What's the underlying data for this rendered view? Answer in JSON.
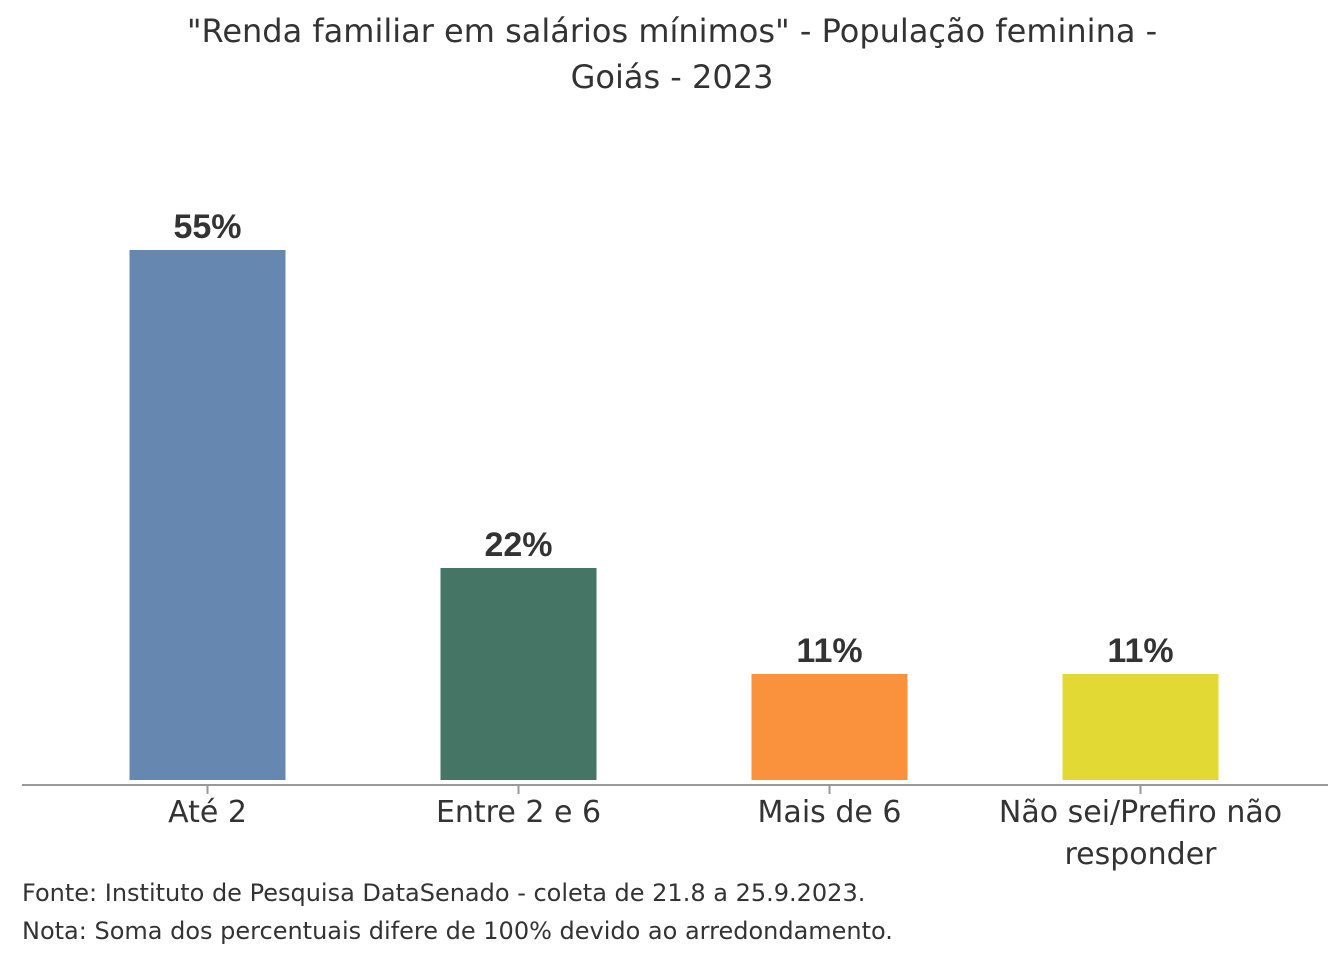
{
  "chart_data": {
    "type": "bar",
    "title_lines": [
      "\"Renda familiar em salários mínimos\" - População feminina -",
      "Goiás - 2023"
    ],
    "categories": [
      [
        "Até 2"
      ],
      [
        "Entre 2 e 6"
      ],
      [
        "Mais de 6"
      ],
      [
        "Não sei/Prefiro não",
        "responder"
      ]
    ],
    "values": [
      55,
      22,
      11,
      11
    ],
    "value_labels": [
      "55%",
      "22%",
      "11%",
      "11%"
    ],
    "colors": [
      "#6688b0",
      "#457564",
      "#fa923d",
      "#e3d935"
    ],
    "ylim": [
      0,
      55
    ],
    "grid": false,
    "legend": "none"
  },
  "footnotes": {
    "source": "Fonte: Instituto de Pesquisa DataSenado - coleta de 21.8 a 25.9.2023.",
    "note": "Nota: Soma dos percentuais difere de 100% devido ao arredondamento."
  }
}
